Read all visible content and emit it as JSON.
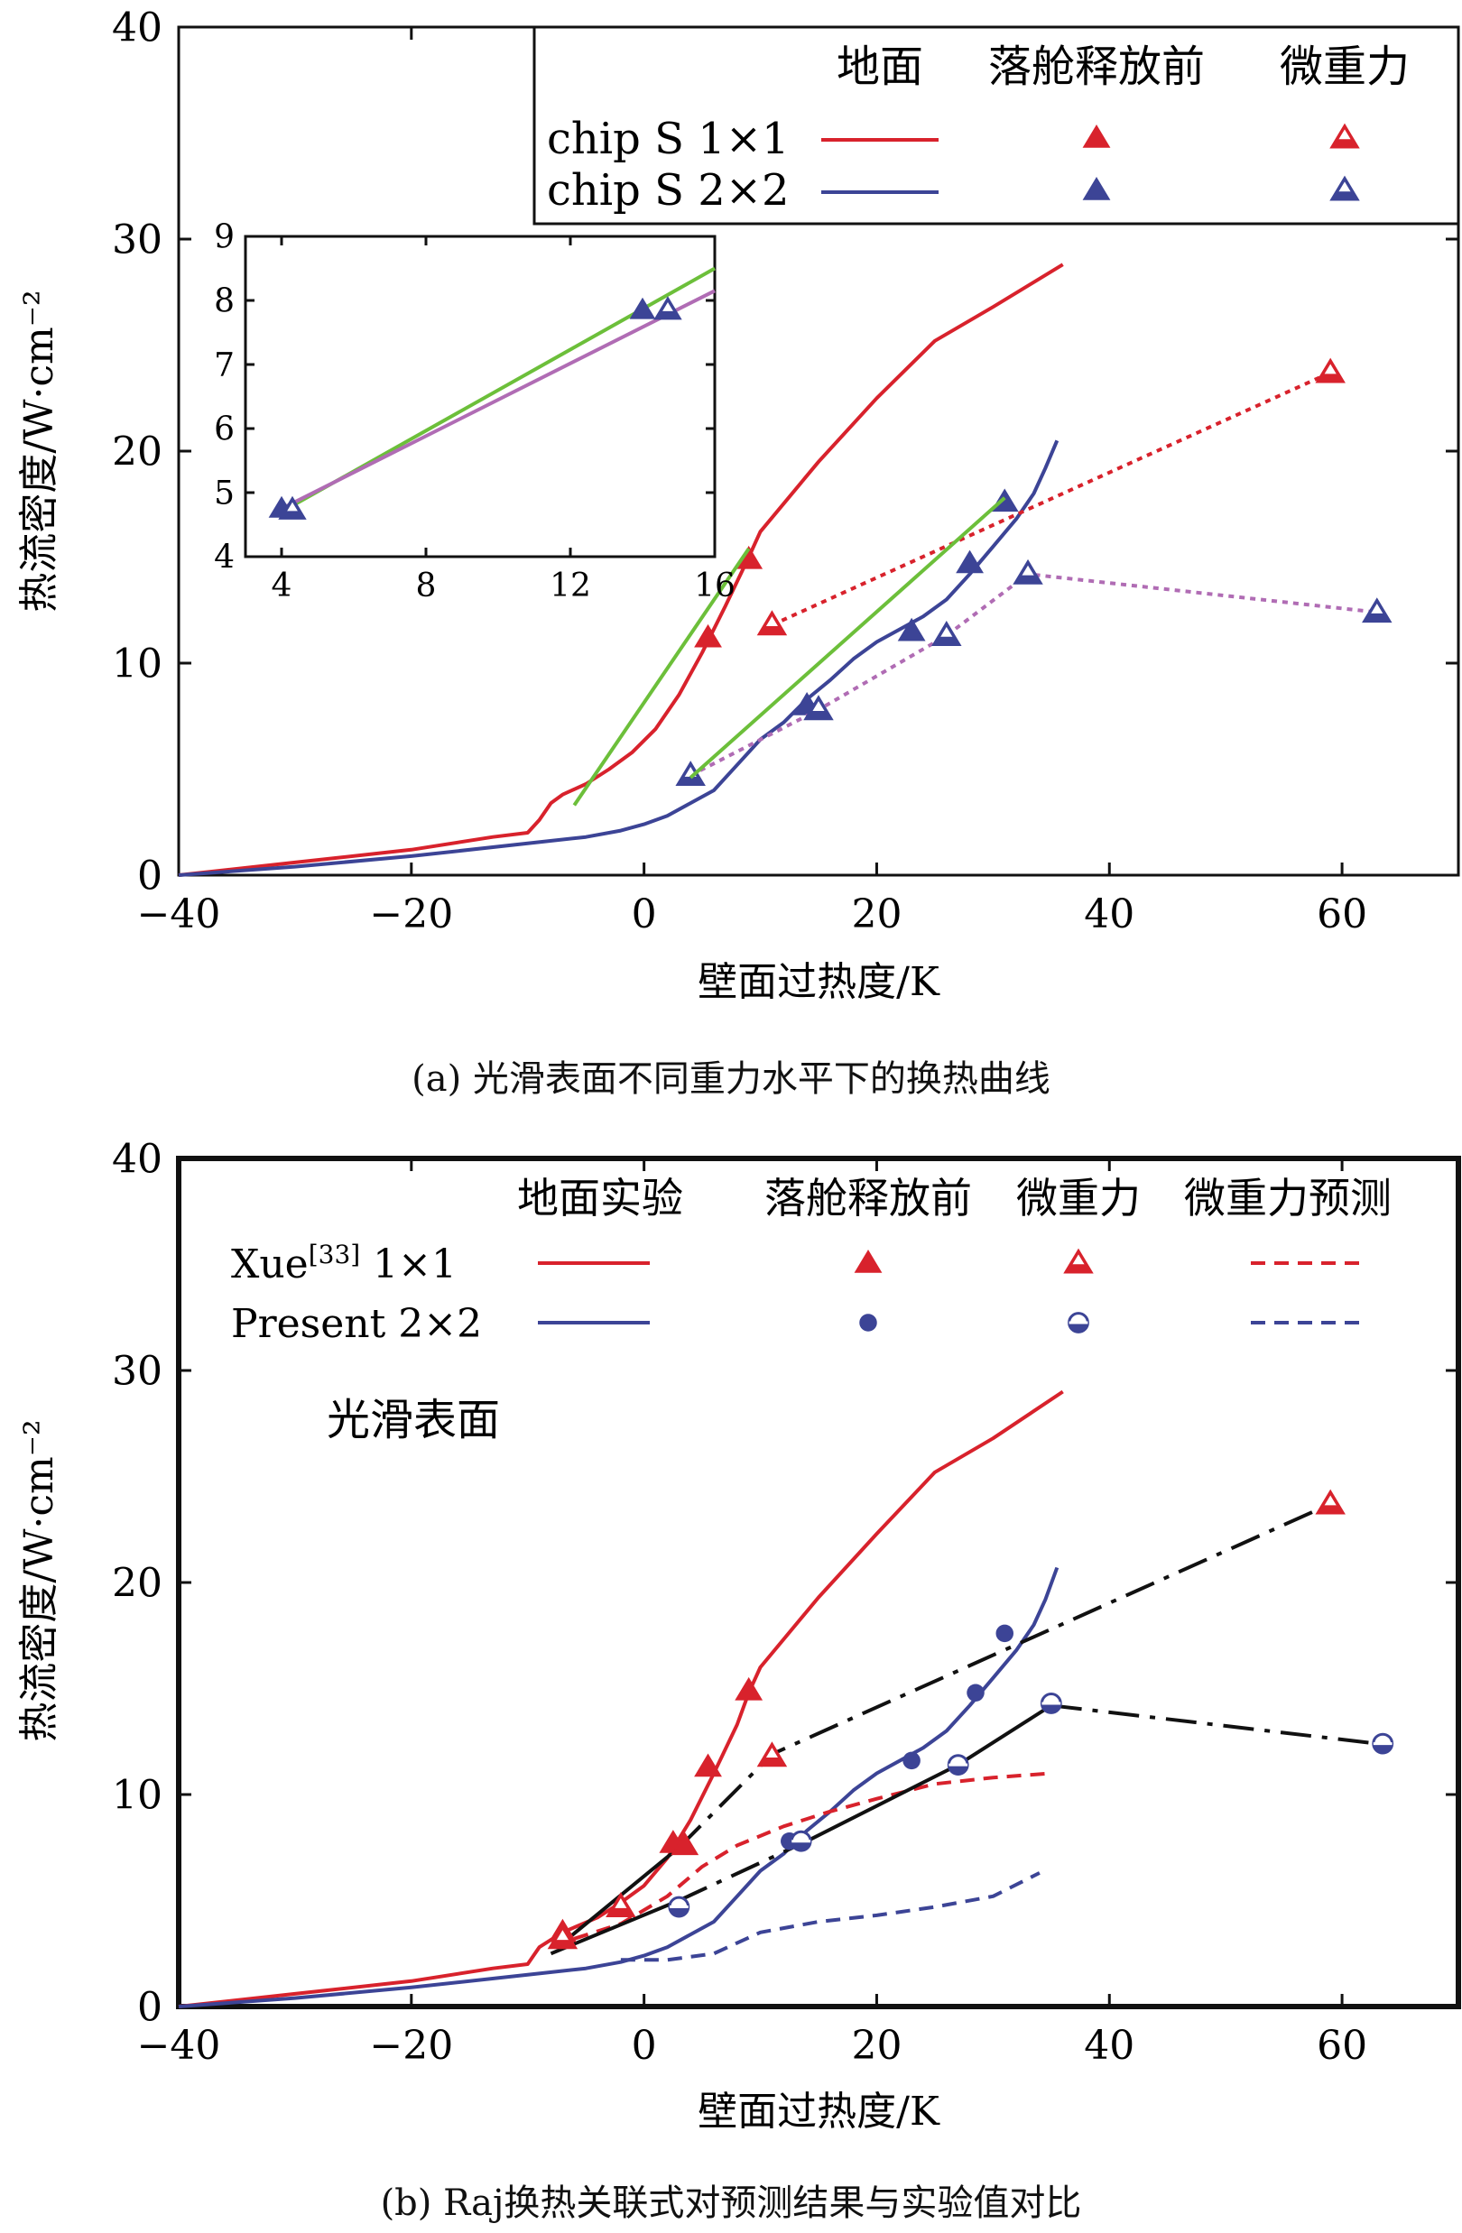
{
  "colors": {
    "red": "#d8222c",
    "blue": "#3c4496",
    "green": "#6cbf3a",
    "purple": "#b06cb4",
    "black": "#111111"
  },
  "panel_a": {
    "caption": "(a) 光滑表面不同重力水平下的换热曲线",
    "legend": {
      "headers": [
        "地面",
        "落舱释放前",
        "微重力"
      ],
      "rows": [
        {
          "label": "chip S 1×1",
          "color": "red"
        },
        {
          "label": "chip S 2×2",
          "color": "blue"
        }
      ]
    }
  },
  "panel_b": {
    "caption": "(b) Raj换热关联式对预测结果与实验值对比",
    "annotation": "光滑表面",
    "legend": {
      "headers": [
        "地面实验",
        "落舱释放前",
        "微重力",
        "微重力预测"
      ],
      "rows": [
        {
          "label": "Xue",
          "ref": "[33]",
          "suffix": " 1×1",
          "color": "red"
        },
        {
          "label": "Present 2×2",
          "color": "blue"
        }
      ]
    }
  },
  "chart_data": [
    {
      "id": "a-main",
      "type": "line",
      "xlabel": "壁面过热度/K",
      "ylabel": "热流密度/W·cm⁻²",
      "xlim": [
        -40,
        70
      ],
      "ylim": [
        0,
        40
      ],
      "xticks": [
        -40,
        -20,
        0,
        20,
        40,
        60
      ],
      "yticks": [
        0,
        10,
        20,
        30,
        40
      ],
      "series": [
        {
          "name": "chip S 1×1 地面",
          "style": "solid",
          "color": "red",
          "x": [
            -40,
            -30,
            -20,
            -13,
            -10,
            -9,
            -8,
            -7,
            -5,
            -3,
            -1,
            1,
            3,
            5,
            7,
            9,
            10,
            15,
            20,
            25,
            30,
            36
          ],
          "y": [
            0,
            0.6,
            1.2,
            1.8,
            2.0,
            2.6,
            3.4,
            3.8,
            4.3,
            5.0,
            5.8,
            6.9,
            8.5,
            10.5,
            12.7,
            15.0,
            16.2,
            19.5,
            22.5,
            25.2,
            26.8,
            28.8
          ]
        },
        {
          "name": "chip S 2×2 地面",
          "style": "solid",
          "color": "blue",
          "x": [
            -40,
            -30,
            -20,
            -10,
            -5,
            -2,
            0,
            2,
            4,
            6,
            8,
            10,
            12,
            14,
            16,
            18,
            20,
            24,
            26,
            28,
            30,
            32,
            33.5,
            34.5,
            35.5
          ],
          "y": [
            0,
            0.4,
            0.9,
            1.5,
            1.8,
            2.1,
            2.4,
            2.8,
            3.4,
            4.0,
            5.2,
            6.4,
            7.2,
            8.3,
            9.2,
            10.2,
            11.0,
            12.2,
            13.0,
            14.2,
            15.5,
            16.8,
            18.0,
            19.2,
            20.5
          ]
        },
        {
          "name": "chip S 1×1 落舱释放前",
          "style": "markers",
          "marker": "triangle",
          "color": "red",
          "x": [
            5.5,
            9
          ],
          "y": [
            11.2,
            14.9
          ]
        },
        {
          "name": "chip S 1×1 微重力",
          "style": "dotted",
          "marker": "triangle-half",
          "color": "red",
          "x": [
            11,
            59
          ],
          "y": [
            11.8,
            23.7
          ]
        },
        {
          "name": "chip S 2×2 落舱释放前",
          "style": "markers",
          "marker": "triangle",
          "color": "blue",
          "x": [
            14,
            23,
            28,
            31
          ],
          "y": [
            8.0,
            11.5,
            14.7,
            17.6
          ]
        },
        {
          "name": "chip S 2×2 微重力",
          "style": "dotted",
          "marker": "triangle-half",
          "color": "blue",
          "lineColor": "purple",
          "x": [
            4,
            15,
            26,
            33,
            63
          ],
          "y": [
            4.7,
            7.8,
            11.3,
            14.2,
            12.4
          ]
        },
        {
          "name": "拟合 1×1",
          "style": "solid",
          "color": "green",
          "x": [
            -6,
            9
          ],
          "y": [
            3.3,
            15.4
          ]
        },
        {
          "name": "拟合 2×2",
          "style": "solid",
          "color": "green",
          "x": [
            4,
            31
          ],
          "y": [
            4.6,
            17.8
          ]
        }
      ]
    },
    {
      "id": "a-inset",
      "type": "line",
      "xlabel": "",
      "ylabel": "",
      "xlim": [
        3,
        16
      ],
      "ylim": [
        4,
        9
      ],
      "xticks": [
        4,
        8,
        12,
        16
      ],
      "yticks": [
        4,
        5,
        6,
        7,
        8,
        9
      ],
      "series": [
        {
          "name": "green fit",
          "style": "solid",
          "color": "green",
          "x": [
            4,
            16
          ],
          "y": [
            4.7,
            8.5
          ]
        },
        {
          "name": "purple fit",
          "style": "solid",
          "color": "purple",
          "x": [
            4,
            16
          ],
          "y": [
            4.75,
            8.15
          ]
        },
        {
          "name": "落舱释放前",
          "style": "markers",
          "marker": "triangle",
          "color": "blue",
          "x": [
            4.0,
            14.0
          ],
          "y": [
            4.75,
            7.85
          ]
        },
        {
          "name": "微重力",
          "style": "markers",
          "marker": "triangle-half",
          "color": "blue",
          "x": [
            4.3,
            14.7
          ],
          "y": [
            4.73,
            7.85
          ]
        }
      ]
    },
    {
      "id": "b-main",
      "type": "line",
      "xlabel": "壁面过热度/K",
      "ylabel": "热流密度/W·cm⁻²",
      "xlim": [
        -40,
        70
      ],
      "ylim": [
        0,
        40
      ],
      "xticks": [
        -40,
        -20,
        0,
        20,
        40,
        60
      ],
      "yticks": [
        0,
        10,
        20,
        30,
        40
      ],
      "series": [
        {
          "name": "Xue 1×1 地面实验",
          "style": "solid",
          "color": "red",
          "x": [
            -40,
            -30,
            -20,
            -13,
            -10,
            -9,
            -7,
            -4,
            -2,
            0,
            2,
            4,
            6,
            8,
            9,
            10,
            15,
            20,
            25,
            30,
            36
          ],
          "y": [
            0,
            0.6,
            1.2,
            1.8,
            2.0,
            2.8,
            3.5,
            4.2,
            4.9,
            5.7,
            7.0,
            8.8,
            11.0,
            13.3,
            14.8,
            16.0,
            19.3,
            22.3,
            25.2,
            26.8,
            29.0
          ]
        },
        {
          "name": "Present 2×2 地面实验",
          "style": "solid",
          "color": "blue",
          "x": [
            -40,
            -30,
            -20,
            -10,
            -5,
            -2,
            0,
            2,
            4,
            6,
            8,
            10,
            12,
            14,
            16,
            18,
            20,
            24,
            26,
            28,
            30,
            32,
            33.5,
            34.5,
            35.5
          ],
          "y": [
            0,
            0.4,
            0.9,
            1.5,
            1.8,
            2.1,
            2.4,
            2.8,
            3.4,
            4.0,
            5.2,
            6.4,
            7.2,
            8.3,
            9.2,
            10.2,
            11.0,
            12.2,
            13.0,
            14.2,
            15.5,
            16.8,
            18.0,
            19.2,
            20.7
          ]
        },
        {
          "name": "Xue 1×1 微重力预测",
          "style": "dashed",
          "color": "red",
          "x": [
            -6,
            -2,
            2,
            5,
            8,
            12,
            16,
            20,
            25,
            30,
            35
          ],
          "y": [
            3.2,
            3.9,
            5.2,
            6.6,
            7.6,
            8.5,
            9.2,
            9.8,
            10.5,
            10.8,
            11.0
          ]
        },
        {
          "name": "Present 2×2 微重力预测",
          "style": "dashed",
          "color": "blue",
          "x": [
            -2,
            2,
            6,
            10,
            15,
            20,
            25,
            30,
            34
          ],
          "y": [
            2.2,
            2.2,
            2.5,
            3.5,
            4.0,
            4.3,
            4.7,
            5.2,
            6.3
          ]
        },
        {
          "name": "Raj 1×1 (solid)",
          "style": "solid",
          "color": "black",
          "x": [
            -7,
            3
          ],
          "y": [
            3.0,
            7.5
          ]
        },
        {
          "name": "Raj 1×1 (dash-dot)",
          "style": "dashdot",
          "color": "black",
          "x": [
            3,
            11,
            59
          ],
          "y": [
            7.5,
            11.9,
            23.7
          ]
        },
        {
          "name": "Raj 2×2 (solid)",
          "style": "solid",
          "color": "black",
          "x": [
            -8,
            3
          ],
          "y": [
            2.5,
            5.0
          ]
        },
        {
          "name": "Raj 2×2 (dash-dot)",
          "style": "dashdot",
          "color": "black",
          "x": [
            3,
            14
          ],
          "y": [
            5.0,
            7.8
          ]
        },
        {
          "name": "Raj 2×2 (solid, mid)",
          "style": "solid",
          "color": "black",
          "x": [
            14,
            27,
            35
          ],
          "y": [
            7.8,
            11.4,
            14.2
          ]
        },
        {
          "name": "Raj 2×2 (dash-dot, tail)",
          "style": "dashdot",
          "color": "black",
          "x": [
            35,
            63
          ],
          "y": [
            14.2,
            12.4
          ]
        },
        {
          "name": "Xue 1×1 落舱释放前",
          "style": "markers",
          "marker": "triangle",
          "color": "red",
          "x": [
            -7,
            2.5,
            3.5,
            5.5,
            9
          ],
          "y": [
            3.5,
            7.7,
            7.6,
            11.3,
            14.9
          ]
        },
        {
          "name": "Xue 1×1 微重力",
          "style": "markers",
          "marker": "triangle-half",
          "color": "red",
          "x": [
            -7,
            -2,
            11,
            59
          ],
          "y": [
            3.2,
            4.7,
            11.8,
            23.7
          ]
        },
        {
          "name": "Present 2×2 落舱释放前",
          "style": "markers",
          "marker": "circle",
          "color": "blue",
          "x": [
            12.5,
            23,
            28.5,
            31
          ],
          "y": [
            7.8,
            11.6,
            14.8,
            17.6
          ]
        },
        {
          "name": "Present 2×2 微重力",
          "style": "markers",
          "marker": "circle-half",
          "color": "blue",
          "x": [
            3,
            13.5,
            27,
            35,
            63.5
          ],
          "y": [
            4.7,
            7.8,
            11.4,
            14.3,
            12.4
          ]
        }
      ]
    }
  ]
}
